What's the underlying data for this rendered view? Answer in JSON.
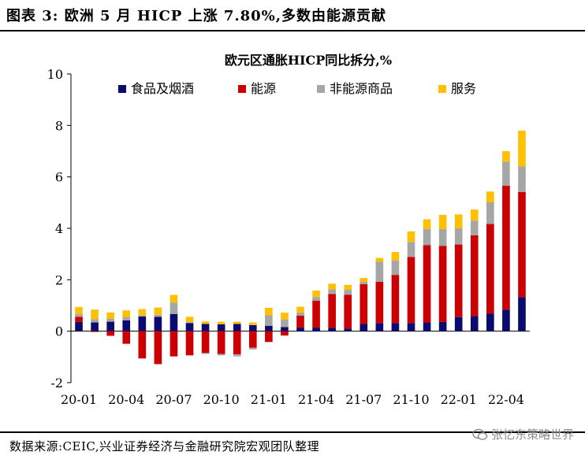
{
  "header": {
    "title": "图表 3:  欧洲 5 月 HICP 上涨 7.80%,多数由能源贡献"
  },
  "footer": {
    "source": "数据来源:CEIC,兴业证券经济与金融研究院宏观团队整理",
    "watermark": "张忆东策略世界"
  },
  "chart_data": {
    "type": "bar",
    "stacked": true,
    "title": "欧元区通胀HICP同比拆分,%",
    "xlabel": "",
    "ylabel": "",
    "ylim": [
      -2,
      10
    ],
    "yticks": [
      -2,
      0,
      2,
      4,
      6,
      8,
      10
    ],
    "legend_position": "top",
    "categories": [
      "20-01",
      "20-02",
      "20-03",
      "20-04",
      "20-05",
      "20-06",
      "20-07",
      "20-08",
      "20-09",
      "20-10",
      "20-11",
      "20-12",
      "21-01",
      "21-02",
      "21-03",
      "21-04",
      "21-05",
      "21-06",
      "21-07",
      "21-08",
      "21-09",
      "21-10",
      "21-11",
      "21-12",
      "22-01",
      "22-02",
      "22-03",
      "22-04",
      "22-05"
    ],
    "tick_labels": [
      "20-01",
      "20-04",
      "20-07",
      "20-10",
      "21-01",
      "21-04",
      "21-07",
      "21-10",
      "22-01",
      "22-04"
    ],
    "series": [
      {
        "name": "食品及烟酒",
        "color": "#0b0b6f",
        "values": [
          0.36,
          0.34,
          0.37,
          0.42,
          0.57,
          0.56,
          0.67,
          0.32,
          0.28,
          0.27,
          0.28,
          0.24,
          0.21,
          0.16,
          0.14,
          0.14,
          0.13,
          0.1,
          0.28,
          0.32,
          0.32,
          0.32,
          0.34,
          0.36,
          0.55,
          0.59,
          0.69,
          0.84,
          1.33
        ]
      },
      {
        "name": "能源",
        "color": "#cc0000",
        "values": [
          0.2,
          -0.03,
          -0.18,
          -0.49,
          -1.06,
          -1.28,
          -0.98,
          -0.94,
          -0.85,
          -0.89,
          -0.9,
          -0.64,
          -0.42,
          -0.17,
          0.47,
          1.05,
          1.32,
          1.32,
          1.55,
          1.6,
          1.87,
          2.57,
          3.01,
          2.96,
          2.82,
          3.14,
          3.48,
          4.82,
          4.08
        ]
      },
      {
        "name": "非能源商品",
        "color": "#a6a6a6",
        "values": [
          0.11,
          0.13,
          0.11,
          0.12,
          0.05,
          0.08,
          0.44,
          0.03,
          -0.03,
          -0.05,
          -0.08,
          -0.07,
          0.41,
          0.3,
          0.12,
          0.14,
          0.18,
          0.19,
          0.09,
          0.78,
          0.56,
          0.58,
          0.63,
          0.65,
          0.63,
          0.57,
          0.84,
          0.93,
          1.0
        ]
      },
      {
        "name": "服务",
        "color": "#ffc000",
        "values": [
          0.27,
          0.37,
          0.25,
          0.27,
          0.24,
          0.28,
          0.3,
          0.21,
          0.1,
          0.1,
          0.09,
          0.1,
          0.29,
          0.26,
          0.22,
          0.25,
          0.22,
          0.19,
          0.15,
          0.15,
          0.33,
          0.41,
          0.37,
          0.55,
          0.54,
          0.43,
          0.42,
          0.41,
          1.39
        ]
      }
    ]
  }
}
